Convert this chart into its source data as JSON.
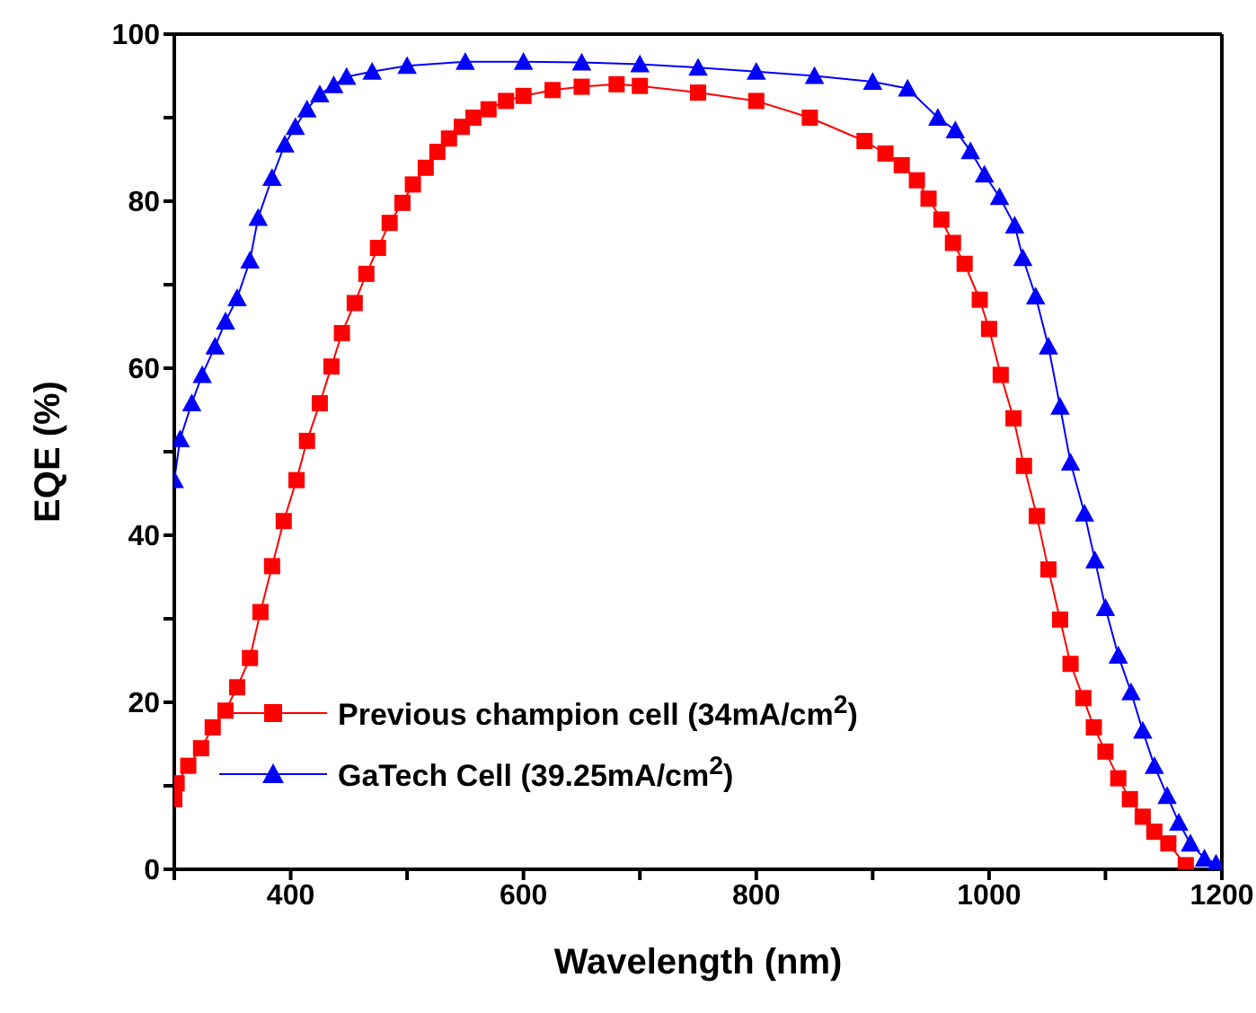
{
  "chart_data": {
    "type": "line",
    "xlabel": "Wavelength (nm)",
    "ylabel": "EQE (%)",
    "xlim": [
      300,
      1200
    ],
    "xticks": [
      {
        "value": 300,
        "label": null
      },
      400,
      {
        "value": 500,
        "label": null
      },
      600,
      {
        "value": 700,
        "label": null
      },
      800,
      {
        "value": 900,
        "label": null
      },
      1000,
      {
        "value": 1100,
        "label": null
      },
      1200
    ],
    "ylim": [
      0,
      100
    ],
    "yticks": [
      0,
      {
        "value": 10,
        "label": null
      },
      20,
      {
        "value": 30,
        "label": null
      },
      40,
      {
        "value": 50,
        "label": null
      },
      60,
      {
        "value": 70,
        "label": null
      },
      80,
      {
        "value": 90,
        "label": null
      },
      100
    ],
    "legend": "bottom left",
    "line_style": "solid",
    "series": [
      {
        "name": "Previous champion cell (34mA/cm$^{2}$)",
        "color": "#ff0000",
        "marker": "square",
        "x": [
          300,
          302,
          312,
          323,
          333,
          344,
          354,
          365,
          374,
          384,
          394,
          405,
          414,
          425,
          435,
          444,
          455,
          465,
          475,
          485,
          496,
          505,
          516,
          526,
          536,
          547,
          557,
          570,
          585,
          600,
          625,
          650,
          680,
          700,
          750,
          800,
          846,
          893,
          911,
          925,
          938,
          948,
          959,
          969,
          979,
          992,
          1000,
          1010,
          1021,
          1030,
          1041,
          1051,
          1061,
          1070,
          1081,
          1090,
          1100,
          1111,
          1121,
          1132,
          1142,
          1154,
          1169
        ],
        "values": [
          8.4,
          10.3,
          12.4,
          14.5,
          17,
          19,
          21.8,
          25.3,
          30.8,
          36.3,
          41.7,
          46.6,
          51.3,
          55.8,
          60.2,
          64.2,
          67.8,
          71.3,
          74.4,
          77.4,
          79.8,
          82,
          84,
          85.9,
          87.5,
          88.9,
          90,
          91,
          92,
          92.6,
          93.3,
          93.7,
          94,
          93.8,
          93,
          92,
          90,
          87.2,
          85.7,
          84.3,
          82.5,
          80.3,
          77.8,
          75,
          72.5,
          68.2,
          64.7,
          59.2,
          54,
          48.3,
          42.3,
          35.9,
          29.9,
          24.6,
          20.5,
          17,
          14.1,
          10.9,
          8.4,
          6.3,
          4.5,
          3.1,
          0.5
        ]
      },
      {
        "name": "GaTech Cell (39.25mA/cm$^{2}$)",
        "color": "#0000ff",
        "marker": "triangle",
        "x": [
          300,
          305,
          315,
          324,
          335,
          344,
          354,
          365,
          372,
          384,
          395,
          404,
          414,
          425,
          437,
          448,
          470,
          500,
          550,
          600,
          650,
          700,
          750,
          800,
          850,
          900,
          930,
          956,
          971,
          984,
          996,
          1009,
          1022,
          1029,
          1040,
          1051,
          1061,
          1070,
          1082,
          1091,
          1100,
          1111,
          1122,
          1132,
          1142,
          1153,
          1163,
          1173,
          1185,
          1195
        ],
        "values": [
          46.6,
          51.5,
          55.8,
          59.2,
          62.6,
          65.6,
          68.4,
          72.9,
          78,
          82.8,
          86.8,
          88.9,
          91,
          92.8,
          93.9,
          94.9,
          95.5,
          96.2,
          96.7,
          96.7,
          96.6,
          96.4,
          96,
          95.5,
          95,
          94.3,
          93.5,
          90,
          88.5,
          86,
          83.2,
          80.5,
          77.1,
          73.2,
          68.6,
          62.6,
          55.4,
          48.7,
          42.6,
          37,
          31.3,
          25.6,
          21.2,
          16.6,
          12.4,
          8.8,
          5.6,
          3.1,
          1.3,
          0.7
        ]
      }
    ]
  }
}
